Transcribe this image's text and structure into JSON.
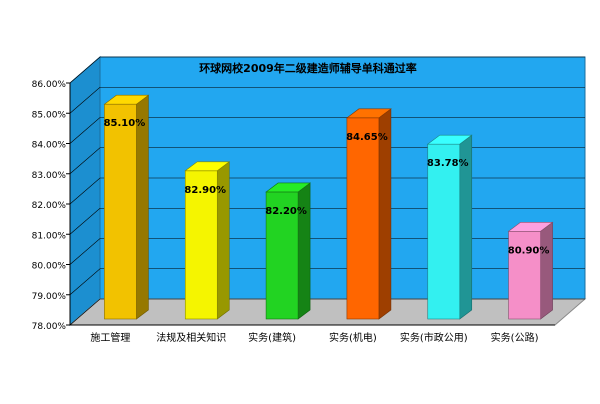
{
  "chart_data": {
    "type": "bar",
    "title": "环球网校2009年二级建造师辅导单科通过率",
    "categories": [
      "施工管理",
      "法规及相关知识",
      "实务(建筑)",
      "实务(机电)",
      "实务(市政公用)",
      "实务(公路)"
    ],
    "values": [
      85.1,
      82.9,
      82.2,
      84.65,
      83.78,
      80.9
    ],
    "value_labels": [
      "85.10%",
      "82.90%",
      "82.20%",
      "84.65%",
      "83.78%",
      "80.90%"
    ],
    "colors": [
      "#F2C200",
      "#F5F500",
      "#22D322",
      "#FF6600",
      "#33F0F0",
      "#F58FC8"
    ],
    "ylim": [
      78,
      86
    ],
    "yticks": [
      "78.00%",
      "79.00%",
      "80.00%",
      "81.00%",
      "82.00%",
      "83.00%",
      "84.00%",
      "85.00%",
      "86.00%"
    ],
    "grid": true,
    "style": "3d",
    "back_wall_color": "#22A7F0",
    "floor_color": "#C0C0C0",
    "xlabel": "",
    "ylabel": ""
  }
}
